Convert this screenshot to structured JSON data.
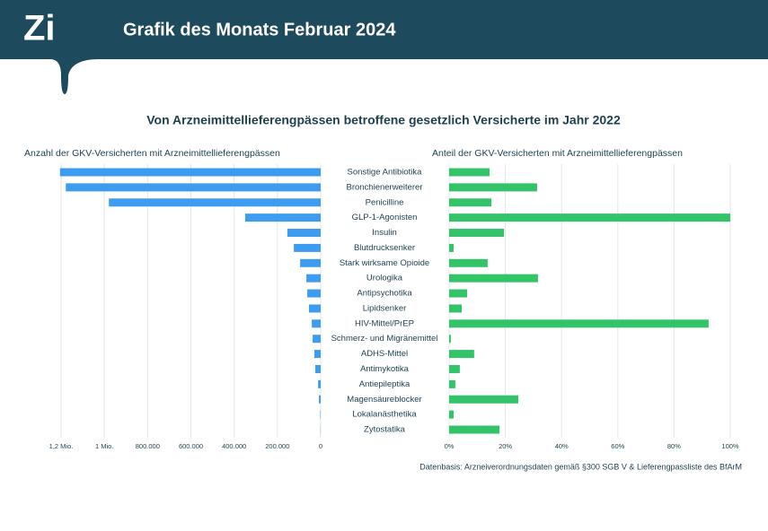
{
  "header": {
    "logo": "Zi",
    "title": "Grafik des Monats Februar 2024"
  },
  "title": "Von Arzneimittellieferengpässen betroffene gesetzlich Versicherte im Jahr 2022",
  "source": "Datenbasis: Arzneiverordnungsdaten gemäß §300 SGB V & Lieferengpassliste des BfArM",
  "chart_data": [
    {
      "type": "hbar",
      "x_label": "Anzahl der GKV-Versicherten mit Arzneimittellieferengpässen",
      "reversed": true,
      "color": "#3d9bf0",
      "grid": true,
      "categories": [
        "Sonstige Antibiotika",
        "Bronchienerweiterer",
        "Penicilline",
        "GLP-1-Agonisten",
        "Insulin",
        "Blutdrucksenker",
        "Stark wirksame Opioide",
        "Urologika",
        "Antipsychotika",
        "Lipidsenker",
        "HIV-Mittel/PrEP",
        "Schmerz- und Migränemittel",
        "ADHS-Mittel",
        "Antimykotika",
        "Antiepileptika",
        "Magensäureblocker",
        "Lokalanästhetika",
        "Zytostatika"
      ],
      "values": [
        1205000,
        1178000,
        979000,
        349000,
        154000,
        124000,
        95000,
        66000,
        62000,
        54000,
        41000,
        37000,
        29000,
        25000,
        12000,
        8000,
        2000,
        1000
      ],
      "xlim": [
        0,
        1200000
      ],
      "xticks": [
        {
          "value": 1200000,
          "label": "1,2 Mio."
        },
        {
          "value": 1000000,
          "label": "1 Mio."
        },
        {
          "value": 800000,
          "label": "800.000"
        },
        {
          "value": 600000,
          "label": "600.000"
        },
        {
          "value": 400000,
          "label": "400.000"
        },
        {
          "value": 200000,
          "label": "200.000"
        },
        0
      ]
    },
    {
      "type": "hbar",
      "x_label": "Anteil der GKV-Versicherten mit Arzneimittellieferengpässen",
      "reversed": false,
      "color": "#33c46a",
      "grid": true,
      "values": [
        14.4,
        31.3,
        15,
        100,
        19.5,
        1.6,
        13.7,
        31.6,
        6.4,
        4.5,
        92.3,
        0.6,
        8.9,
        3.8,
        2.2,
        24.6,
        1.6,
        17.9
      ],
      "xlim": [
        0,
        100
      ],
      "xticks": [
        {
          "value": 0,
          "label": "0%"
        },
        {
          "value": 20,
          "label": "20%"
        },
        {
          "value": 40,
          "label": "40%"
        },
        {
          "value": 60,
          "label": "60%"
        },
        {
          "value": 80,
          "label": "80%"
        },
        {
          "value": 100,
          "label": "100%"
        }
      ]
    }
  ]
}
